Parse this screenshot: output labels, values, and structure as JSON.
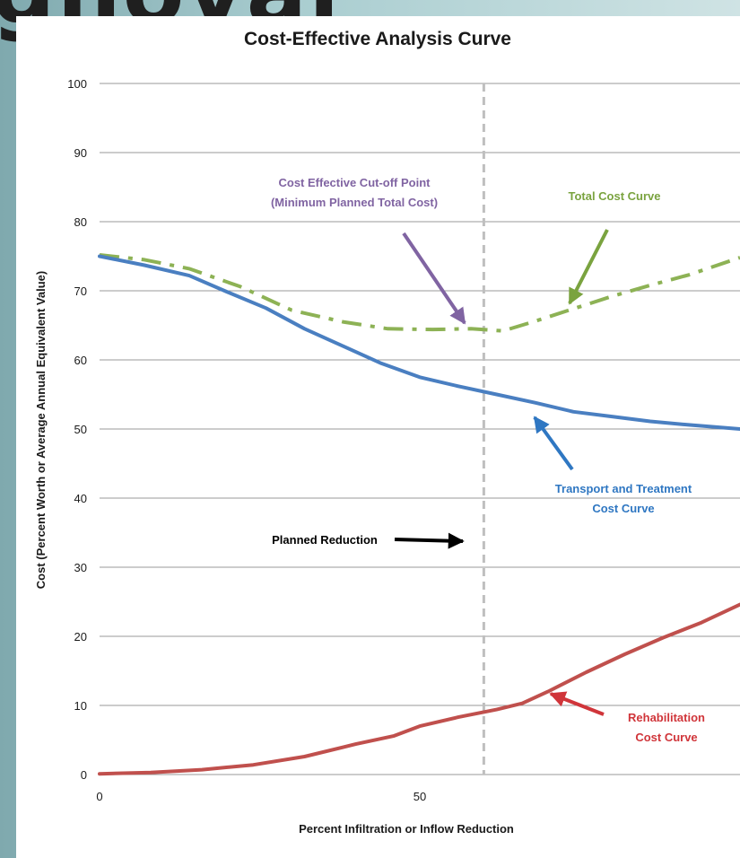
{
  "background": {
    "heading_fragment": "gnoval"
  },
  "chart_data": {
    "type": "line",
    "title": "Cost-Effective Analysis Curve",
    "xlabel": "Percent Infiltration or Inflow Reduction",
    "ylabel": "Cost (Percent Worth or Average Annual Equivalent Value)",
    "xlim": [
      0,
      100
    ],
    "ylim": [
      0,
      100
    ],
    "x_ticks": [
      0,
      50
    ],
    "y_ticks": [
      0,
      10,
      20,
      30,
      40,
      50,
      60,
      70,
      80,
      90,
      100
    ],
    "grid": "horizontal",
    "legend": "none",
    "planned_reduction_x": 60,
    "series": [
      {
        "key": "total",
        "color": "#8db255",
        "style": "dash-dot",
        "x": [
          0,
          7,
          14,
          22,
          30,
          38,
          45,
          52,
          58,
          63,
          68,
          74,
          80,
          86,
          92,
          100
        ],
        "y": [
          75.2,
          74.5,
          73.2,
          70.6,
          67.2,
          65.5,
          64.5,
          64.4,
          64.5,
          64.2,
          65.6,
          67.4,
          69.2,
          70.8,
          72.3,
          74.8
        ]
      },
      {
        "key": "transport",
        "color": "#4a7fc1",
        "style": "solid",
        "x": [
          0,
          7,
          14,
          20,
          26,
          32,
          38,
          44,
          50,
          56,
          62,
          68,
          74,
          80,
          86,
          92,
          100
        ],
        "y": [
          75,
          73.7,
          72.2,
          69.8,
          67.5,
          64.5,
          62,
          59.5,
          57.5,
          56.2,
          55,
          53.8,
          52.5,
          51.8,
          51.1,
          50.6,
          50
        ]
      },
      {
        "key": "rehab",
        "color": "#c0504d",
        "style": "solid",
        "x": [
          0,
          8,
          16,
          24,
          32,
          40,
          46,
          50,
          56,
          62,
          66,
          70,
          76,
          82,
          88,
          94,
          100
        ],
        "y": [
          0.1,
          0.3,
          0.7,
          1.4,
          2.6,
          4.4,
          5.6,
          7,
          8.3,
          9.4,
          10.3,
          12,
          14.8,
          17.4,
          19.8,
          22,
          24.6
        ]
      }
    ],
    "annotations": [
      {
        "key": "cutoff",
        "lines": [
          "Cost Effective Cut-off Point",
          "(Minimum Planned Total Cost)"
        ],
        "color": "#8064a2"
      },
      {
        "key": "total",
        "lines": [
          "Total Cost Curve"
        ],
        "color": "#7aa33f"
      },
      {
        "key": "transport",
        "lines": [
          "Transport and Treatment",
          "Cost Curve"
        ],
        "color": "#2f77c2"
      },
      {
        "key": "planned",
        "lines": [
          "Planned Reduction"
        ],
        "color": "#000000"
      },
      {
        "key": "rehab",
        "lines": [
          "Rehabilitation",
          "Cost Curve"
        ],
        "color": "#d0353a"
      }
    ]
  }
}
